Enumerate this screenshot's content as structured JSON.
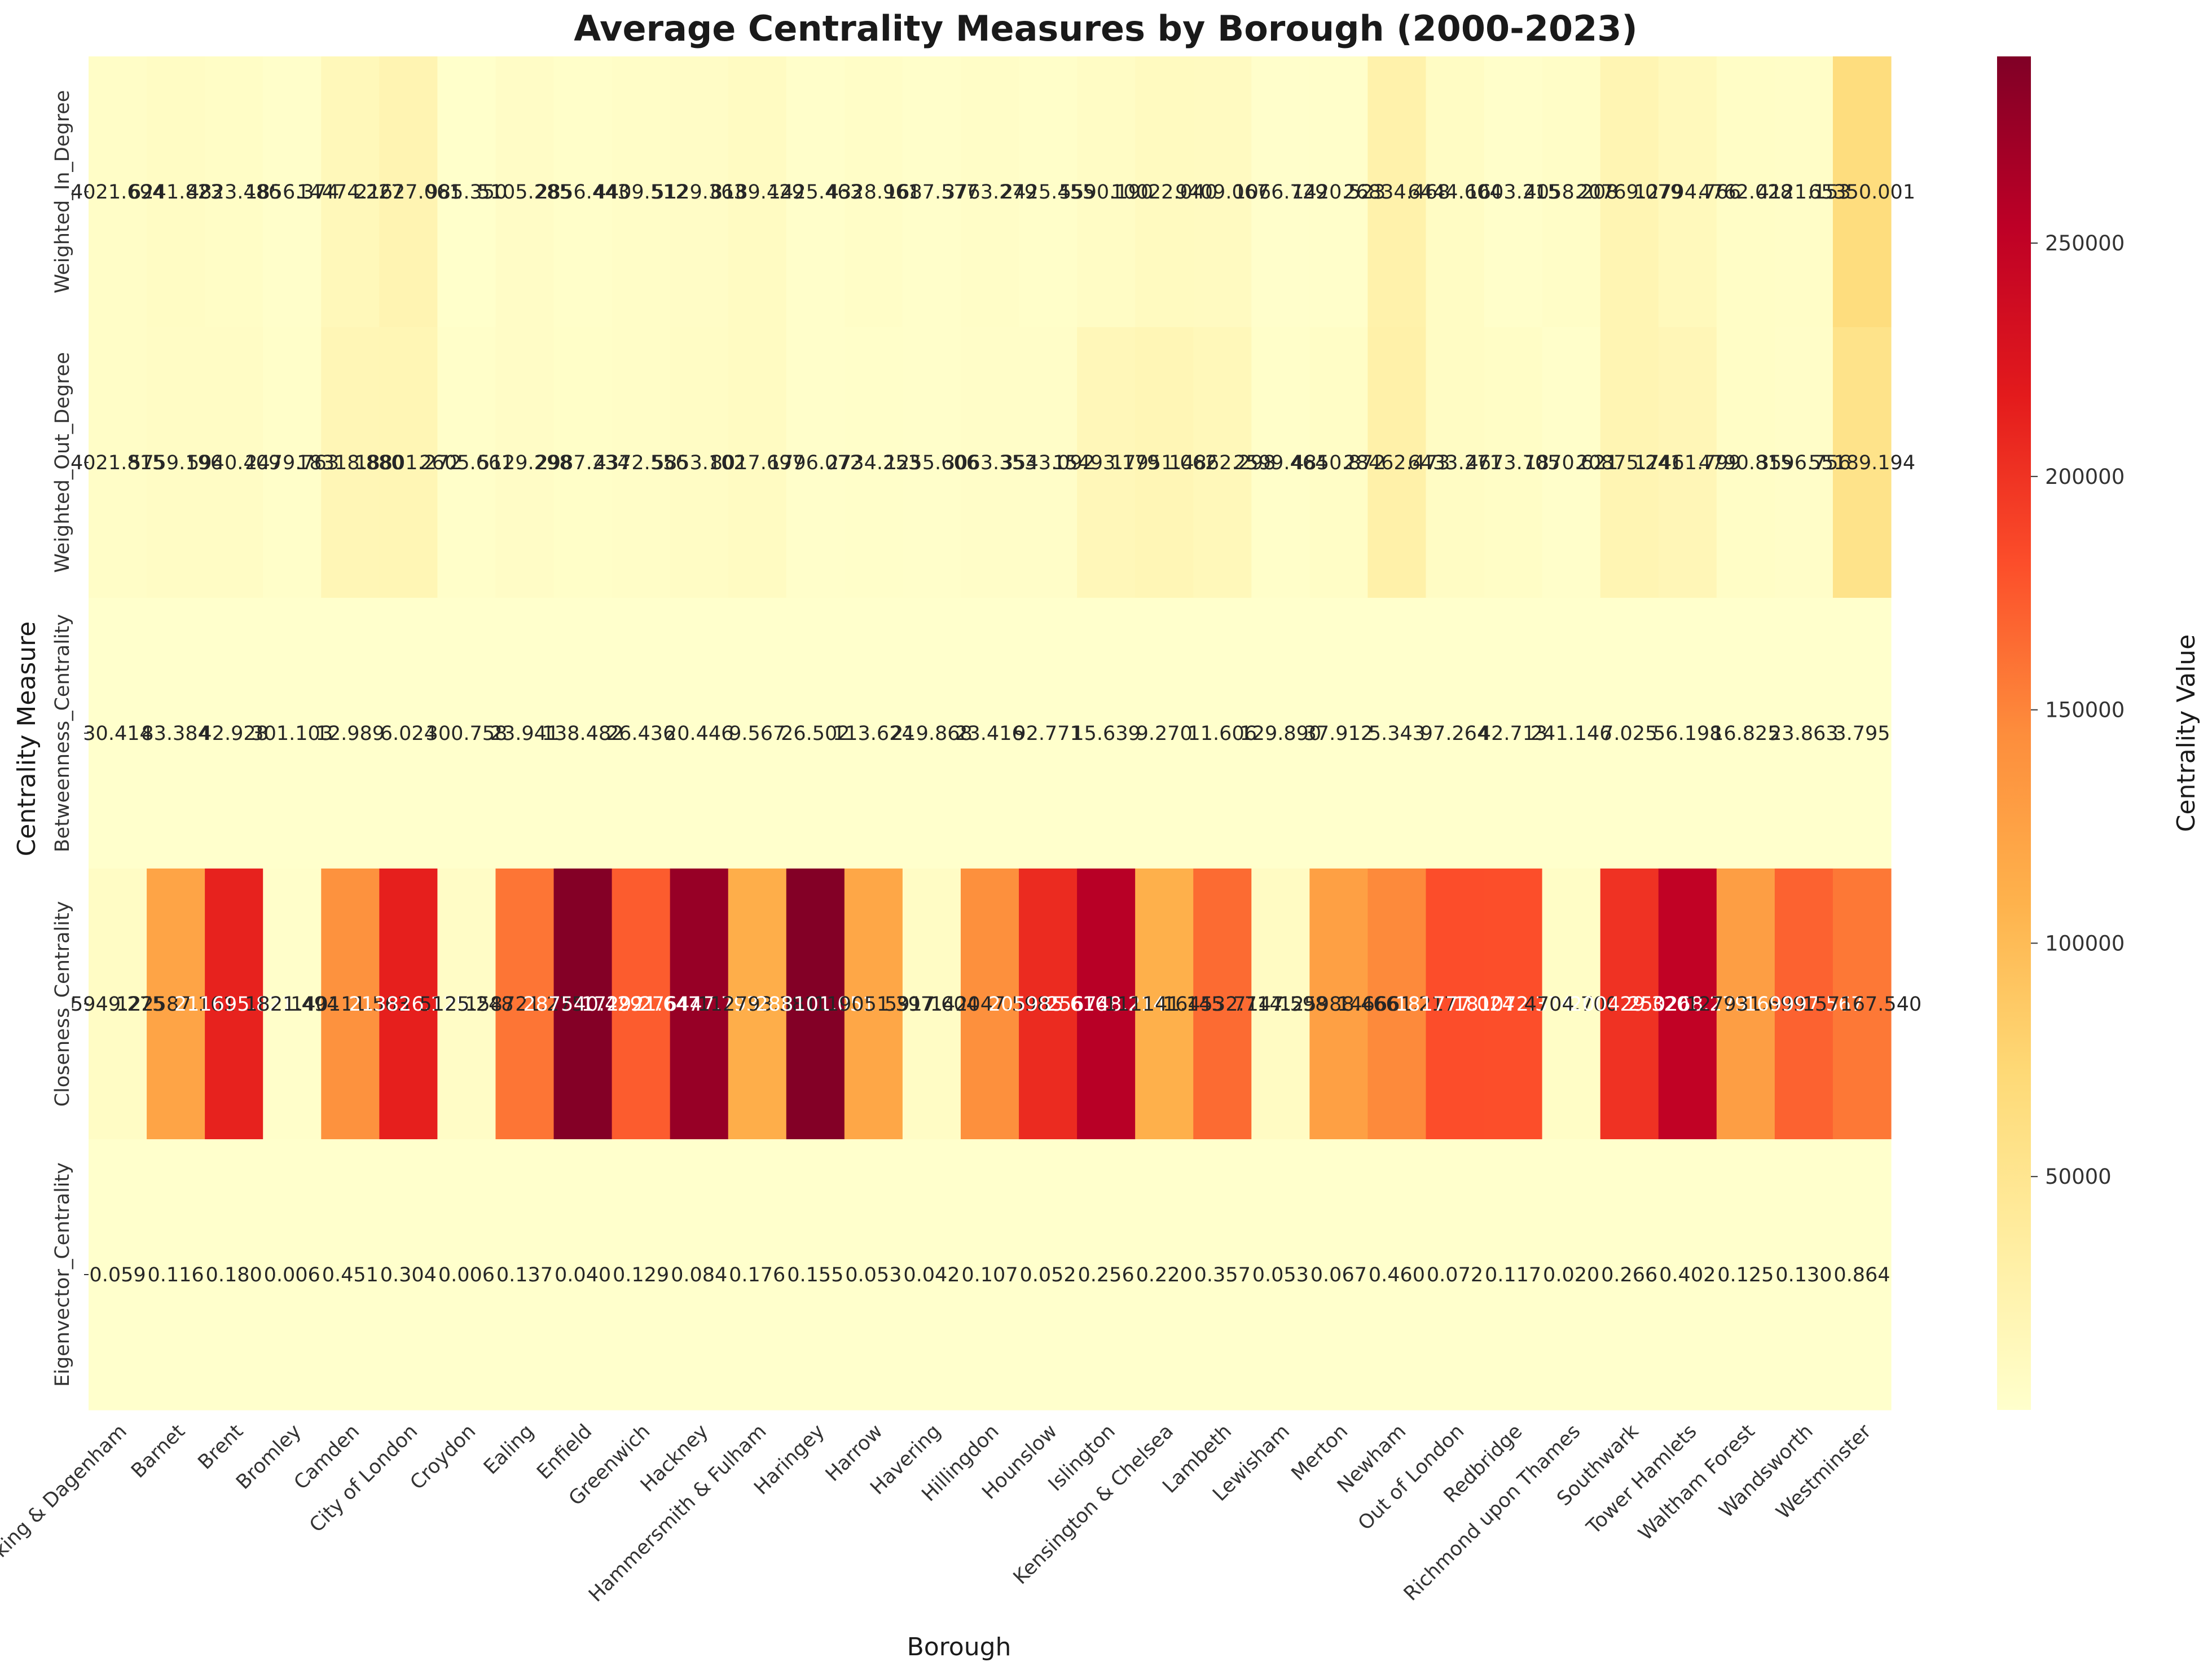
{
  "chart_data": {
    "type": "heatmap",
    "title": "Average Centrality Measures by Borough (2000-2023)",
    "xlabel": "Borough",
    "ylabel": "Centrality Measure",
    "colorbar_label": "Centrality Value",
    "colormap": "YlOrRd",
    "colors": {
      "low": "#ffffcc",
      "high": "#800026"
    },
    "value_range": [
      0,
      290000
    ],
    "colorbar_ticks": [
      "50000",
      "100000",
      "150000",
      "200000",
      "250000"
    ],
    "colorbar_tick_values": [
      50000,
      100000,
      150000,
      200000,
      250000
    ],
    "boroughs": [
      "Barking & Dagenham",
      "Barnet",
      "Brent",
      "Bromley",
      "Camden",
      "City of London",
      "Croydon",
      "Ealing",
      "Enfield",
      "Greenwich",
      "Hackney",
      "Hammersmith & Fulham",
      "Haringey",
      "Harrow",
      "Havering",
      "Hillingdon",
      "Hounslow",
      "Islington",
      "Kensington & Chelsea",
      "Lambeth",
      "Lewisham",
      "Merton",
      "Newham",
      "Out of London",
      "Redbridge",
      "Richmond upon Thames",
      "Southwark",
      "Tower Hamlets",
      "Waltham Forest",
      "Wandsworth",
      "Westminster"
    ],
    "measures": [
      "Weighted_In_Degree",
      "Weighted_Out_Degree",
      "Betweenness_Centrality",
      "Closeness_Centrality",
      "Eigenvector_Centrality"
    ],
    "values": [
      [
        4022,
        6241,
        4823,
        1856,
        14474,
        21627,
        985,
        5105,
        2856,
        4409,
        5129,
        8189,
        1425,
        4328,
        1688,
        3763,
        2425,
        5590,
        10022,
        9409,
        1067,
        1420,
        26834,
        6444,
        1603,
        4058,
        20769,
        12794,
        4762,
        4121,
        65350
      ],
      [
        4022,
        5759,
        5940,
        2479,
        18318,
        18801,
        2606,
        5129,
        2987,
        4372,
        5853,
        8017,
        1796,
        2734,
        1255,
        3063,
        3543,
        15493,
        17951,
        14862,
        2599,
        4850,
        28462,
        6433,
        4674,
        1871,
        20875,
        17461,
        4790,
        3596,
        55189
      ],
      [
        30.414,
        83.384,
        42.928,
        301.103,
        12.989,
        6.024,
        300.758,
        23.941,
        138.482,
        26.436,
        20.446,
        9.567,
        26.502,
        113.624,
        219.868,
        23.416,
        92.771,
        15.639,
        9.27,
        11.606,
        129.89,
        37.912,
        5.343,
        97.264,
        42.713,
        241.146,
        7.025,
        56.198,
        16.825,
        23.863,
        3.795
      ],
      [
        5949,
        122587,
        211695,
        1821,
        140111,
        213826,
        5125,
        158721,
        287540,
        172921,
        276447,
        112793,
        288101,
        119051,
        5917,
        142047,
        205985,
        256748,
        111141,
        164532,
        7147,
        125988,
        146661,
        181777,
        181072,
        4704,
        200429,
        250268,
        127931,
        169997,
        157167
      ],
      [
        0.059,
        0.116,
        0.18,
        0.006,
        0.451,
        0.304,
        0.006,
        0.137,
        0.04,
        0.129,
        0.084,
        0.176,
        0.155,
        0.053,
        0.042,
        0.107,
        0.052,
        0.256,
        0.22,
        0.357,
        0.053,
        0.067,
        0.46,
        0.072,
        0.117,
        0.02,
        0.266,
        0.402,
        0.125,
        0.13,
        0.864
      ]
    ],
    "cell_labels": [
      [
        "4021.694",
        "6241.823",
        "4823.486",
        "1856.374",
        "14474.227",
        "21627.061",
        "985.350",
        "5105.285",
        "2856.443",
        "4409.512",
        "5129.363",
        "8189.429",
        "1425.463",
        "4328.961",
        "1687.577",
        "3763.279",
        "2425.455",
        "5590.190",
        "10022.040",
        "9409.067",
        "1066.729",
        "1420.523",
        "26834.468",
        "6444.604",
        "1603.215",
        "4058.208",
        "20769.079",
        "12794.766",
        "4762.028",
        "4121.153",
        "65350.001"
      ],
      [
        "4021.815",
        "5759.196",
        "5940.409",
        "2479.763",
        "18318.880",
        "18801.272",
        "2605.661",
        "5129.298",
        "2987.234",
        "4372.556",
        "5853.102",
        "8017.697",
        "1796.072",
        "2734.253",
        "1255.606",
        "3063.353",
        "3543.092",
        "15493.179",
        "17951.062",
        "14862.298",
        "2599.464",
        "4850.872",
        "28462.473",
        "6433.271",
        "4673.705",
        "1870.621",
        "20875.241",
        "17461.799",
        "4790.815",
        "3596.756",
        "55189.194"
      ],
      [
        "30.414",
        "83.384",
        "42.928",
        "301.103",
        "12.989",
        "6.024",
        "300.758",
        "23.941",
        "138.482",
        "26.436",
        "20.446",
        "9.567",
        "26.502",
        "113.624",
        "219.868",
        "23.416",
        "92.771",
        "15.639",
        "9.270",
        "11.606",
        "129.890",
        "37.912",
        "5.343",
        "97.264",
        "42.713",
        "241.146",
        "7.025",
        "56.198",
        "16.825",
        "23.863",
        "3.795"
      ],
      [
        "5949.275",
        "122587.161",
        "211695.821",
        "1821.494",
        "140111.563",
        "213826.125",
        "5125.248",
        "158721.275",
        "287540.429",
        "172921.647",
        "276447.793",
        "112793.381",
        "288101.051",
        "119051.397",
        "5917.604",
        "142047.598",
        "205985.616",
        "256748.214",
        "111141.145",
        "164532.714",
        "7147.598",
        "125988.466",
        "146661.217",
        "181777.024",
        "181072.374",
        "4704.700",
        "200429.320",
        "250268.279",
        "127931.699",
        "169997.567",
        "157167.540"
      ],
      [
        "0.059",
        "0.116",
        "0.180",
        "0.006",
        "0.451",
        "0.304",
        "0.006",
        "0.137",
        "0.040",
        "0.129",
        "0.084",
        "0.176",
        "0.155",
        "0.053",
        "0.042",
        "0.107",
        "0.052",
        "0.256",
        "0.220",
        "0.357",
        "0.053",
        "0.067",
        "0.460",
        "0.072",
        "0.117",
        "0.020",
        "0.266",
        "0.402",
        "0.125",
        "0.130",
        "0.864"
      ]
    ]
  }
}
